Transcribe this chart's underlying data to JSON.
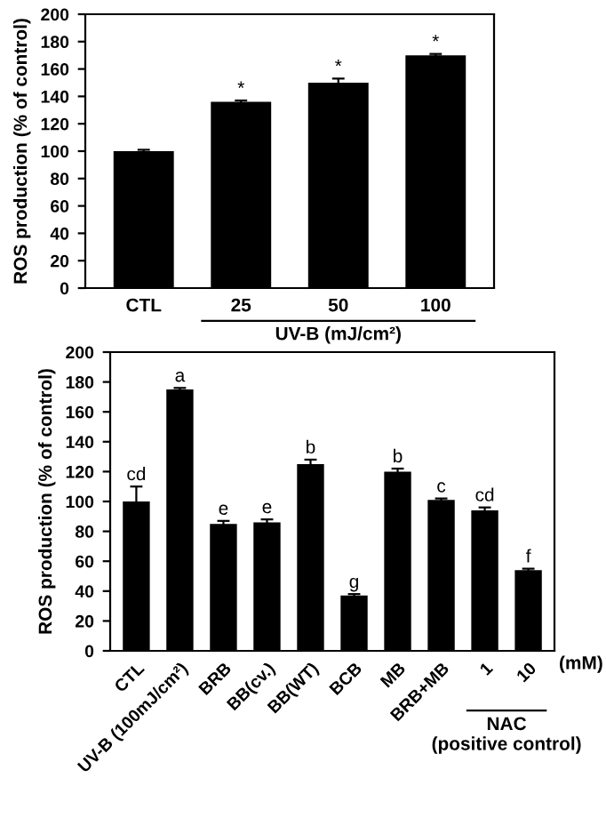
{
  "chart_data": [
    {
      "type": "bar",
      "categories": [
        "CTL",
        "25",
        "50",
        "100"
      ],
      "values": [
        100,
        136,
        150,
        170
      ],
      "errors": [
        1,
        1,
        3,
        1
      ],
      "color": "#000000",
      "ylabel": "ROS production (% of control)",
      "ylim": [
        0,
        200
      ],
      "yticks": [
        0,
        20,
        40,
        60,
        80,
        100,
        120,
        140,
        160,
        180,
        200
      ],
      "grid": false,
      "annotations": [
        {
          "text": "*",
          "x": "25",
          "y": 137
        },
        {
          "text": "*",
          "x": "50",
          "y": 153
        },
        {
          "text": "*",
          "x": "100",
          "y": 171
        },
        "UV-B (mJ/cm²)"
      ]
    },
    {
      "type": "bar",
      "categories": [
        "CTL",
        "UV-B (100mJ/cm²)",
        "BRB",
        "BB(cv.)",
        "BB(WT)",
        "BCB",
        "MB",
        "BRB+MB",
        "1",
        "10"
      ],
      "values": [
        100,
        175,
        85,
        86,
        125,
        37,
        120,
        101,
        94,
        54
      ],
      "errors": [
        10,
        1,
        2,
        2,
        3,
        1,
        2,
        1,
        2,
        1
      ],
      "color": "#000000",
      "ylabel": "ROS production (% of control)",
      "ylim": [
        0,
        200
      ],
      "yticks": [
        0,
        20,
        40,
        60,
        80,
        100,
        120,
        140,
        160,
        180,
        200
      ],
      "grid": false,
      "annotations": [
        {
          "text": "cd",
          "x": "CTL",
          "y": 110
        },
        {
          "text": "a",
          "x": "UV-B (100mJ/cm²)",
          "y": 176
        },
        {
          "text": "e",
          "x": "BRB",
          "y": 87
        },
        {
          "text": "e",
          "x": "BB(cv.)",
          "y": 88
        },
        {
          "text": "b",
          "x": "BB(WT)",
          "y": 128
        },
        {
          "text": "g",
          "x": "BCB",
          "y": 38
        },
        {
          "text": "b",
          "x": "MB",
          "y": 122
        },
        {
          "text": "c",
          "x": "BRB+MB",
          "y": 102
        },
        {
          "text": "cd",
          "x": "1",
          "y": 96
        },
        {
          "text": "f",
          "x": "10",
          "y": 55
        },
        "(mM)",
        "NAC\n(positive control)"
      ]
    }
  ]
}
